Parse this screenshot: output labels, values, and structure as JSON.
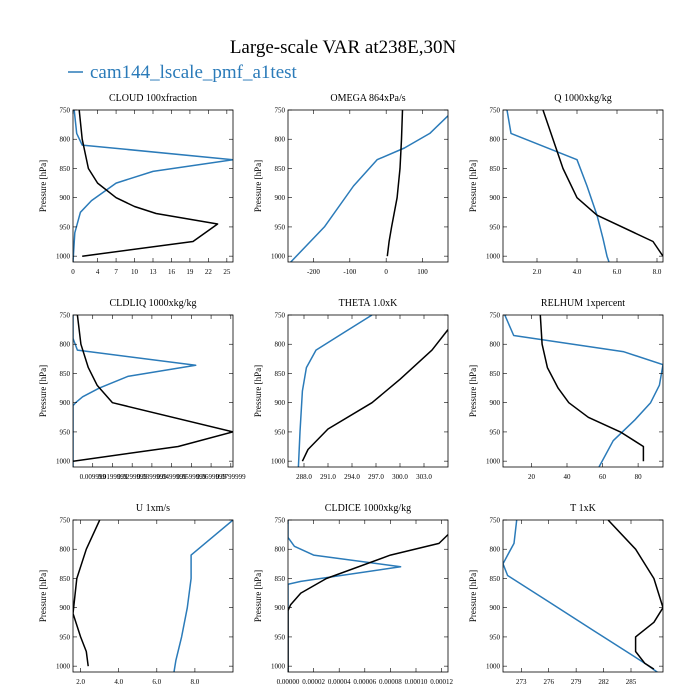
{
  "figure": {
    "title": "Large-scale VAR at238E,30N",
    "legend": [
      {
        "name": "cam144_lscale_pmf_a1test",
        "color": "#2b7bb9"
      }
    ]
  },
  "colors": {
    "blue": "#2b7bb9",
    "black": "#000000"
  },
  "chart_data": [
    {
      "type": "line",
      "title": "CLOUD 100xfraction",
      "ylabel": "Pressure [hPa]",
      "xlim": [
        0,
        26
      ],
      "ylim": [
        1010,
        750
      ],
      "xticks": [
        0,
        4,
        7,
        10,
        13,
        16,
        19,
        22,
        25
      ],
      "xticklabels": [
        "0",
        "4",
        "7",
        "10",
        "13",
        "16",
        "19",
        "22",
        "25"
      ],
      "yticks": [
        750,
        800,
        850,
        900,
        950,
        1000
      ],
      "yticklabels": [
        "750",
        "800",
        "850",
        "900",
        "950",
        "1000"
      ],
      "series": [
        {
          "color": "#2b7bb9",
          "x": [
            0.2,
            0.6,
            1.5,
            26,
            13,
            7,
            3,
            1.2,
            0.3,
            0
          ],
          "y": [
            750,
            790,
            810,
            835,
            855,
            875,
            905,
            925,
            960,
            1010
          ]
        },
        {
          "color": "#000000",
          "x": [
            1,
            1.5,
            2.5,
            4,
            7,
            10,
            13.5,
            23.5,
            19.5,
            1.5
          ],
          "y": [
            750,
            800,
            850,
            875,
            900,
            915,
            927,
            945,
            975,
            1000
          ]
        }
      ]
    },
    {
      "type": "line",
      "title": "OMEGA 864xPa/s",
      "ylabel": "Pressure [hPa]",
      "xlim": [
        -270,
        170
      ],
      "ylim": [
        1010,
        750
      ],
      "xticks": [
        -200,
        -100,
        0,
        100
      ],
      "xticklabels": [
        "-200",
        "-100",
        "0",
        "100"
      ],
      "yticks": [
        750,
        800,
        850,
        900,
        950,
        1000
      ],
      "yticklabels": [
        "750",
        "800",
        "850",
        "900",
        "950",
        "1000"
      ],
      "series": [
        {
          "color": "#2b7bb9",
          "x": [
            170,
            120,
            50,
            -25,
            -90,
            -170,
            -270
          ],
          "y": [
            760,
            790,
            815,
            835,
            880,
            950,
            1015
          ]
        },
        {
          "color": "#000000",
          "x": [
            45,
            42,
            38,
            30,
            15,
            8,
            3
          ],
          "y": [
            750,
            800,
            850,
            900,
            950,
            975,
            1000
          ]
        }
      ]
    },
    {
      "type": "line",
      "title": "Q 1000xkg/kg",
      "ylabel": "Pressure [hPa]",
      "xlim": [
        0.3,
        8.3
      ],
      "ylim": [
        1010,
        750
      ],
      "xticks": [
        2,
        4,
        6,
        8
      ],
      "xticklabels": [
        "2.0",
        "4.0",
        "6.0",
        "8.0"
      ],
      "yticks": [
        750,
        800,
        850,
        900,
        950,
        1000
      ],
      "yticklabels": [
        "750",
        "800",
        "850",
        "900",
        "950",
        "1000"
      ],
      "series": [
        {
          "color": "#2b7bb9",
          "x": [
            0.5,
            0.7,
            4.0,
            4.5,
            5.0,
            5.3,
            5.5,
            5.6
          ],
          "y": [
            750,
            790,
            835,
            880,
            930,
            970,
            1000,
            1010
          ]
        },
        {
          "color": "#000000",
          "x": [
            2.3,
            2.8,
            3.3,
            4.0,
            5.0,
            7.8,
            8.3
          ],
          "y": [
            750,
            800,
            850,
            900,
            930,
            975,
            1000
          ]
        }
      ]
    },
    {
      "type": "line",
      "title": "CLDLIQ 1000xkg/kg",
      "ylabel": "Pressure [hPa]",
      "xlim": [
        0,
        0.0365
      ],
      "ylim": [
        1010,
        750
      ],
      "xticks": [
        0.0045,
        0.009,
        0.0135,
        0.018,
        0.0225,
        0.027,
        0.0315,
        0.036
      ],
      "xticklabels": [
        "0.009999",
        "0.0199999",
        "0.0299999",
        "0.0399999",
        "0.0499999",
        "0.0599999",
        "0.0699999",
        "0.0799999"
      ],
      "yticks": [
        750,
        800,
        850,
        900,
        950,
        1000
      ],
      "yticklabels": [
        "750",
        "800",
        "850",
        "900",
        "950",
        "1000"
      ],
      "series": [
        {
          "color": "#2b7bb9",
          "x": [
            0,
            0,
            0.001,
            0.028,
            0.0125,
            0.006,
            0.0022,
            0.0006,
            0,
            0
          ],
          "y": [
            750,
            790,
            810,
            836,
            855,
            875,
            890,
            900,
            905,
            1010
          ]
        },
        {
          "color": "#000000",
          "x": [
            0.001,
            0.0018,
            0.0035,
            0.0055,
            0.009,
            0.0365,
            0.024,
            0
          ],
          "y": [
            750,
            800,
            840,
            870,
            900,
            950,
            975,
            1000
          ]
        }
      ]
    },
    {
      "type": "line",
      "title": "THETA 1.0xK",
      "ylabel": "Pressure [hPa]",
      "xlim": [
        286,
        306
      ],
      "ylim": [
        1010,
        750
      ],
      "xticks": [
        288,
        291,
        294,
        297,
        300,
        303
      ],
      "xticklabels": [
        "288.0",
        "291.0",
        "294.0",
        "297.0",
        "300.0",
        "303.0"
      ],
      "yticks": [
        750,
        800,
        850,
        900,
        950,
        1000
      ],
      "yticklabels": [
        "750",
        "800",
        "850",
        "900",
        "950",
        "1000"
      ],
      "series": [
        {
          "color": "#2b7bb9",
          "x": [
            296.5,
            293,
            289.5,
            288.3,
            287.8,
            287.5,
            287.3
          ],
          "y": [
            750,
            780,
            810,
            840,
            880,
            950,
            1010
          ]
        },
        {
          "color": "#000000",
          "x": [
            306,
            304,
            300,
            296.5,
            291,
            288.5,
            287.8
          ],
          "y": [
            775,
            810,
            860,
            900,
            945,
            980,
            1000
          ]
        }
      ]
    },
    {
      "type": "line",
      "title": "RELHUM 1xpercent",
      "ylabel": "Pressure [hPa]",
      "xlim": [
        4,
        94
      ],
      "ylim": [
        1010,
        750
      ],
      "xticks": [
        20,
        40,
        60,
        80
      ],
      "xticklabels": [
        "20",
        "40",
        "60",
        "80"
      ],
      "yticks": [
        750,
        800,
        850,
        900,
        950,
        1000
      ],
      "yticklabels": [
        "750",
        "800",
        "850",
        "900",
        "950",
        "1000"
      ],
      "series": [
        {
          "color": "#2b7bb9",
          "x": [
            5,
            10,
            72,
            94,
            92,
            87,
            78,
            66,
            58
          ],
          "y": [
            750,
            785,
            813,
            835,
            870,
            900,
            930,
            965,
            1010
          ]
        },
        {
          "color": "#000000",
          "x": [
            25,
            26,
            29,
            35,
            41,
            52,
            70,
            83,
            83
          ],
          "y": [
            750,
            800,
            840,
            875,
            900,
            925,
            950,
            975,
            1000
          ]
        }
      ]
    },
    {
      "type": "line",
      "title": "U 1xm/s",
      "ylabel": "Pressure [hPa]",
      "xlim": [
        1.6,
        10
      ],
      "ylim": [
        1010,
        750
      ],
      "xticks": [
        2,
        4,
        6,
        8
      ],
      "xticklabels": [
        "2.0",
        "4.0",
        "6.0",
        "8.0"
      ],
      "yticks": [
        750,
        800,
        850,
        900,
        950,
        1000
      ],
      "yticklabels": [
        "750",
        "800",
        "850",
        "900",
        "950",
        "1000"
      ],
      "series": [
        {
          "color": "#2b7bb9",
          "x": [
            10,
            7.8,
            7.8,
            7.6,
            7.3,
            7.0,
            6.9
          ],
          "y": [
            750,
            810,
            850,
            900,
            950,
            990,
            1010
          ]
        },
        {
          "color": "#000000",
          "x": [
            3.0,
            2.3,
            1.8,
            1.6,
            2.0,
            2.3,
            2.4
          ],
          "y": [
            750,
            800,
            850,
            910,
            950,
            975,
            1000
          ]
        }
      ]
    },
    {
      "type": "line",
      "title": "CLDICE 1000xkg/kg",
      "ylabel": "Pressure [hPa]",
      "xlim": [
        0,
        0.000125
      ],
      "ylim": [
        1010,
        750
      ],
      "xticks": [
        0,
        2e-05,
        4e-05,
        6e-05,
        8e-05,
        0.0001,
        0.00012
      ],
      "xticklabels": [
        "0.00000",
        "0.00002",
        "0.00004",
        "0.00006",
        "0.00008",
        "0.00010",
        "0.00012"
      ],
      "yticks": [
        750,
        800,
        850,
        900,
        950,
        1000
      ],
      "yticklabels": [
        "750",
        "800",
        "850",
        "900",
        "950",
        "1000"
      ],
      "series": [
        {
          "color": "#2b7bb9",
          "x": [
            0,
            0,
            5e-06,
            2e-05,
            8.8e-05,
            1e-05,
            0,
            0,
            0
          ],
          "y": [
            750,
            780,
            795,
            810,
            830,
            855,
            860,
            900,
            1010
          ]
        },
        {
          "color": "#000000",
          "x": [
            0.000125,
            0.000118,
            8e-05,
            3e-05,
            1e-05,
            2e-06,
            0,
            0
          ],
          "y": [
            775,
            790,
            810,
            850,
            875,
            895,
            905,
            1010
          ]
        }
      ]
    },
    {
      "type": "line",
      "title": "T 1xK",
      "ylabel": "Pressure [hPa]",
      "xlim": [
        271,
        288.5
      ],
      "ylim": [
        1010,
        750
      ],
      "xticks": [
        273,
        276,
        279,
        282,
        285
      ],
      "xticklabels": [
        "273",
        "276",
        "279",
        "282",
        "285"
      ],
      "yticks": [
        750,
        800,
        850,
        900,
        950,
        1000
      ],
      "yticklabels": [
        "750",
        "800",
        "850",
        "900",
        "950",
        "1000"
      ],
      "series": [
        {
          "color": "#2b7bb9",
          "x": [
            272.5,
            272.2,
            271.5,
            271,
            271.5,
            276,
            281,
            286.5,
            288.3
          ],
          "y": [
            750,
            790,
            810,
            825,
            845,
            890,
            940,
            995,
            1015
          ]
        },
        {
          "color": "#000000",
          "x": [
            282.5,
            285.5,
            287.5,
            288.5,
            287.5,
            285.5,
            285.5,
            286.5,
            287.5
          ],
          "y": [
            750,
            800,
            850,
            900,
            925,
            950,
            975,
            995,
            1005
          ]
        }
      ]
    }
  ]
}
